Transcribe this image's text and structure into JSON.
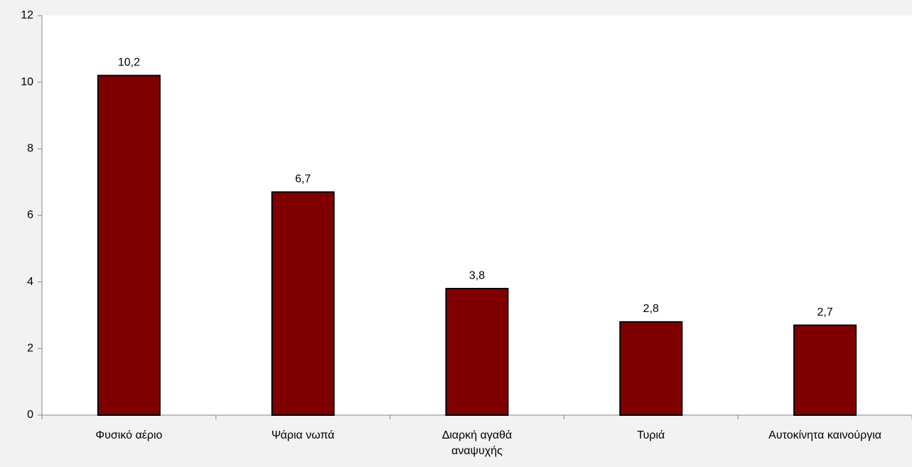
{
  "chart_data": {
    "type": "bar",
    "categories": [
      "Φυσικό αέριο",
      "Ψάρια νωπά",
      "Διαρκή αγαθά\nαναψυχής",
      "Τυριά",
      "Αυτοκίνητα καινούργια"
    ],
    "values": [
      10.2,
      6.7,
      3.8,
      2.8,
      2.7
    ],
    "value_labels": [
      "10,2",
      "6,7",
      "3,8",
      "2,8",
      "2,7"
    ],
    "color": "#800000",
    "ylim": [
      0,
      12
    ],
    "yticks": [
      0,
      2,
      4,
      6,
      8,
      10,
      12
    ]
  }
}
